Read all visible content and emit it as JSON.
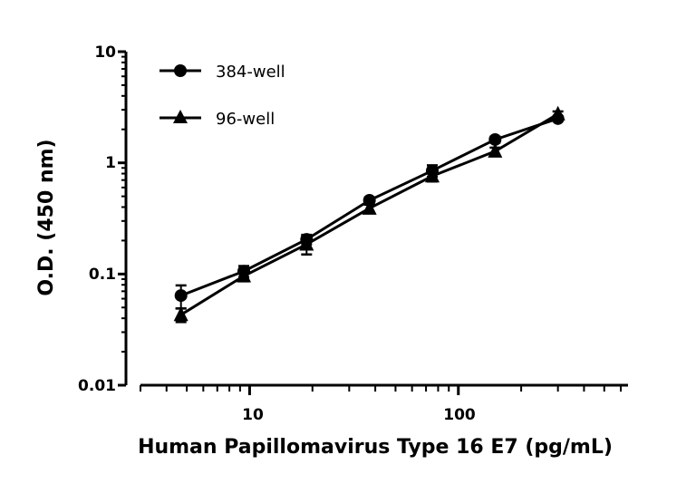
{
  "chart_data": {
    "type": "line",
    "xlabel": "Human Papillomavirus Type 16 E7 (pg/mL)",
    "ylabel": "O.D. (450 nm)",
    "xscale": "log",
    "yscale": "log",
    "xlim": [
      3,
      650
    ],
    "ylim": [
      0.01,
      10
    ],
    "x_tick_labels": [
      "10",
      "100"
    ],
    "y_tick_labels": [
      "0.01",
      "0.1",
      "1",
      "10"
    ],
    "grid": false,
    "legend_position": "top-left",
    "x": [
      4.69,
      9.38,
      18.75,
      37.5,
      75,
      150,
      300
    ],
    "series": [
      {
        "name": "384-well",
        "marker": "circle",
        "values": [
          0.064,
          0.106,
          0.205,
          0.46,
          0.85,
          1.62,
          2.5
        ],
        "errors": [
          0.015,
          0.012,
          0.02,
          0.03,
          0.1,
          0.1,
          0.1
        ]
      },
      {
        "name": "96-well",
        "marker": "triangle",
        "values": [
          0.043,
          0.096,
          0.185,
          0.39,
          0.76,
          1.27,
          2.75
        ],
        "errors": [
          0.006,
          0.01,
          0.035,
          0.03,
          0.08,
          0.1,
          0.15
        ]
      }
    ],
    "color": "#000000"
  }
}
